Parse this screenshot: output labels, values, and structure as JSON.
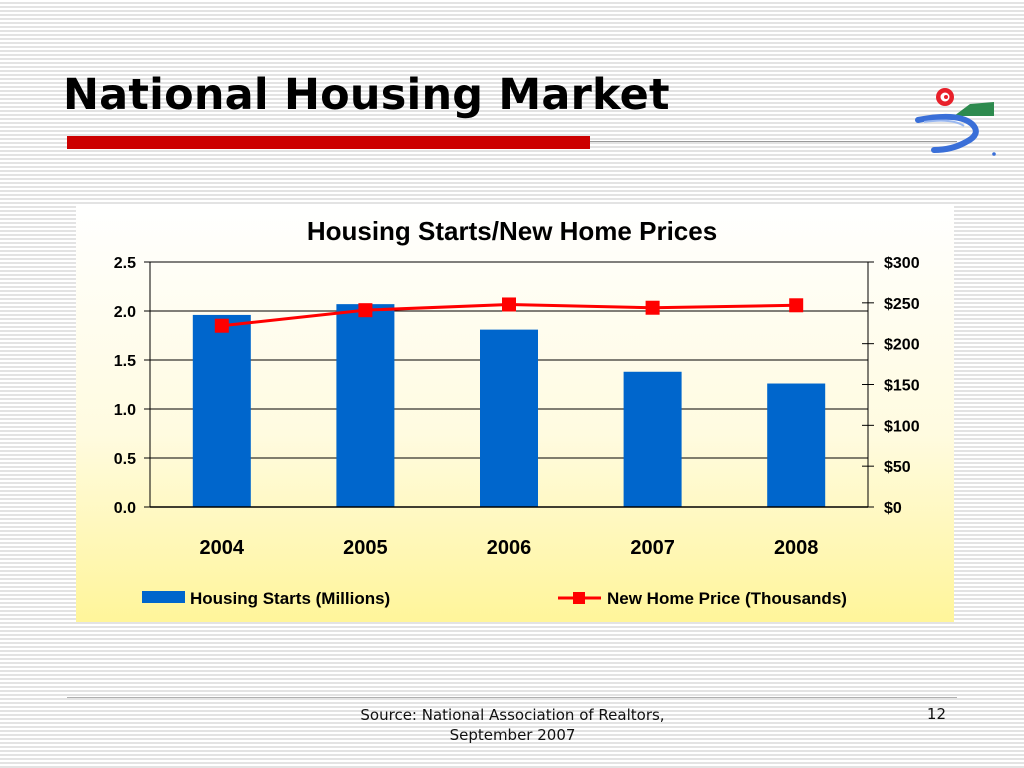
{
  "slide": {
    "title": "National Housing Market",
    "source_line1": "Source: National Association of Realtors,",
    "source_line2": "September 2007",
    "page_number": "12",
    "accent_color": "#cc0000"
  },
  "chart_data": {
    "type": "bar",
    "title": "Housing Starts/New Home Prices",
    "categories": [
      "2004",
      "2005",
      "2006",
      "2007",
      "2008"
    ],
    "y_left": {
      "range": [
        0,
        2.5
      ],
      "ticks": [
        0,
        0.5,
        1.0,
        1.5,
        2.0,
        2.5
      ],
      "tick_labels": [
        "0.0",
        "0.5",
        "1.0",
        "1.5",
        "2.0",
        "2.5"
      ]
    },
    "y_right": {
      "range": [
        0,
        300
      ],
      "ticks": [
        0,
        50,
        100,
        150,
        200,
        250,
        300
      ],
      "tick_labels": [
        "$0",
        "$50",
        "$100",
        "$150",
        "$200",
        "$250",
        "$300"
      ]
    },
    "series": [
      {
        "name": "Housing Starts (Millions)",
        "type": "bar",
        "axis": "left",
        "color": "#0066cc",
        "values": [
          1.96,
          2.07,
          1.81,
          1.38,
          1.26
        ]
      },
      {
        "name": "New Home Price (Thousands)",
        "type": "line",
        "axis": "right",
        "color": "#ff0000",
        "values": [
          222,
          241,
          248,
          244,
          247
        ]
      }
    ],
    "grid": true,
    "legend": "bottom"
  }
}
